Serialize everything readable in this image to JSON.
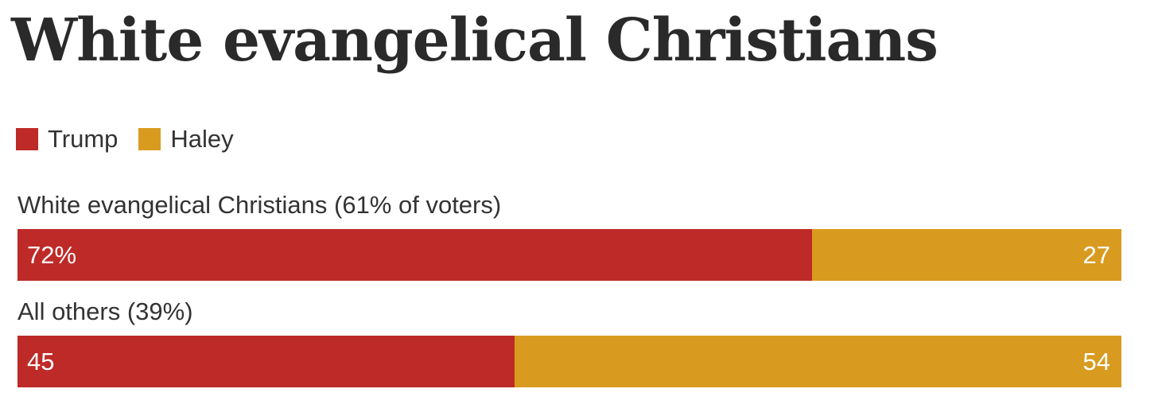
{
  "chart_data": {
    "type": "bar",
    "orientation": "horizontal",
    "stacked": true,
    "title": "White evangelical Christians",
    "legend": {
      "placement": "top-left",
      "entries": [
        {
          "name": "Trump",
          "color": "#be2a27"
        },
        {
          "name": "Haley",
          "color": "#d89b1f"
        }
      ]
    },
    "categories": [
      "White evangelical Christians (61% of voters)",
      "All others (39%)"
    ],
    "series": [
      {
        "name": "Trump",
        "color": "#be2a27",
        "values": [
          72,
          45
        ],
        "labels": [
          "72%",
          "45"
        ]
      },
      {
        "name": "Haley",
        "color": "#d89b1f",
        "values": [
          27,
          54
        ],
        "labels": [
          "27",
          "54"
        ]
      }
    ],
    "xlim": [
      0,
      100
    ],
    "grid": false
  }
}
